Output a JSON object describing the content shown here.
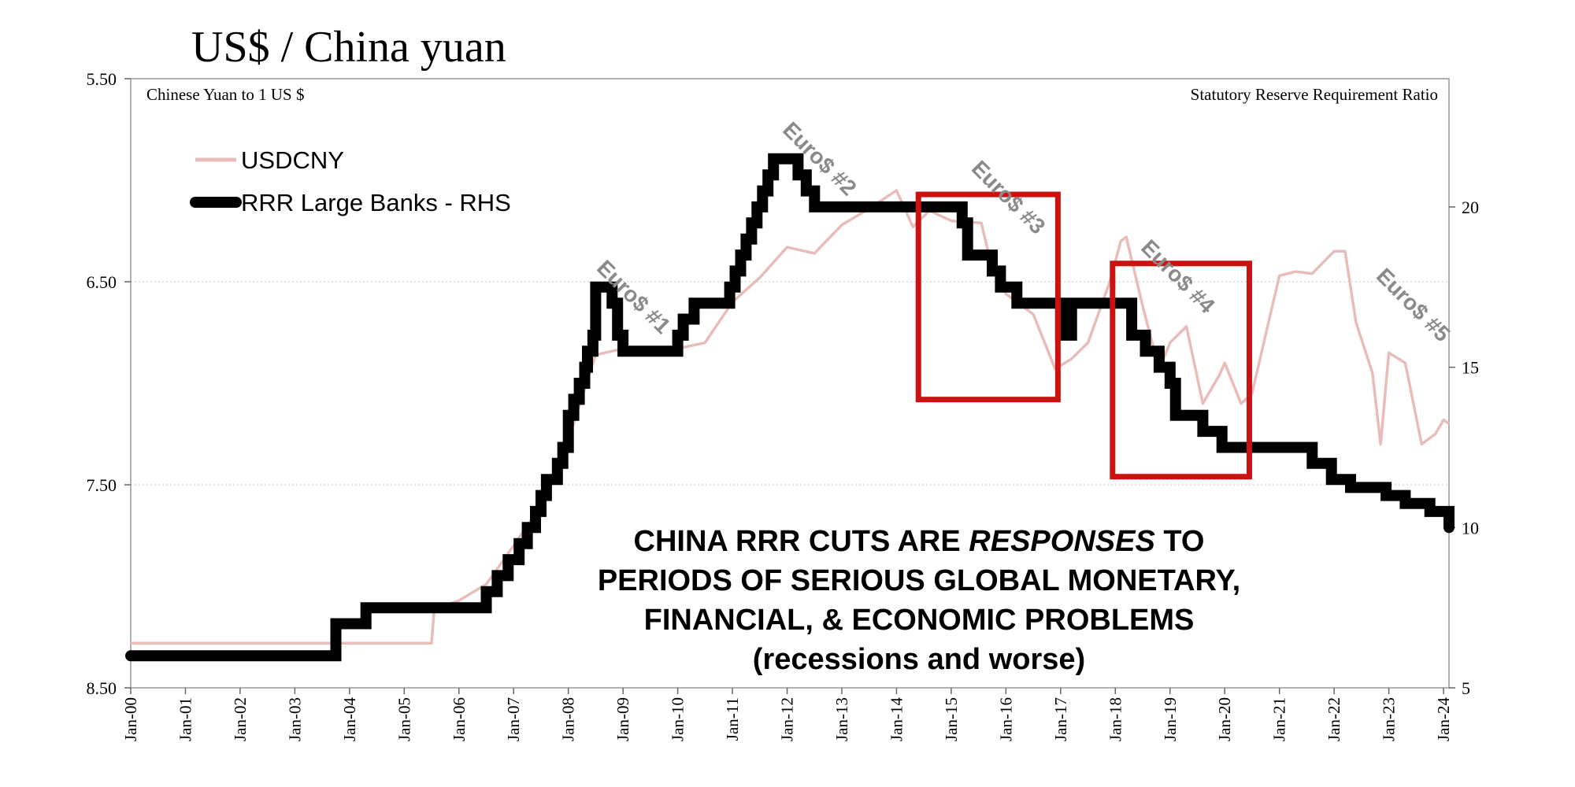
{
  "colors": {
    "usdcny": "#e8bcb8",
    "rrr": "#000000",
    "highlight_box": "#cc1111",
    "event_label": "#8a8a8a",
    "frame": "#999999",
    "grid": "#c8c8c8"
  },
  "chart_data": {
    "type": "line",
    "title": "US$ / China yuan",
    "left_axis_title": "Chinese Yuan to 1 US $",
    "right_axis_title": "Statutory Reserve Requirement Ratio",
    "left_axis": {
      "ylim": [
        5.5,
        8.5
      ],
      "inverted": true,
      "ticks": [
        "5.50",
        "6.50",
        "7.50",
        "8.50"
      ]
    },
    "right_axis": {
      "ylim": [
        5,
        24
      ],
      "ticks": [
        "5",
        "10",
        "15",
        "20"
      ]
    },
    "x_axis": {
      "range": [
        2000.0,
        2024.1
      ],
      "ticks": [
        "Jan-00",
        "Jan-01",
        "Jan-02",
        "Jan-03",
        "Jan-04",
        "Jan-05",
        "Jan-06",
        "Jan-07",
        "Jan-08",
        "Jan-09",
        "Jan-10",
        "Jan-11",
        "Jan-12",
        "Jan-13",
        "Jan-14",
        "Jan-15",
        "Jan-16",
        "Jan-17",
        "Jan-18",
        "Jan-19",
        "Jan-20",
        "Jan-21",
        "Jan-22",
        "Jan-23",
        "Jan-24"
      ]
    },
    "grid": "horizontal gridlines at left-axis ticks",
    "legend": {
      "placement": "top-left",
      "entries": [
        {
          "name": "USDCNY",
          "style": "thin light red line"
        },
        {
          "name": "RRR Large Banks - RHS",
          "style": "thick black stepped line"
        }
      ]
    },
    "series": [
      {
        "name": "USDCNY",
        "axis": "left",
        "points": [
          [
            2000.0,
            8.28
          ],
          [
            2005.5,
            8.28
          ],
          [
            2005.55,
            8.11
          ],
          [
            2005.8,
            8.09
          ],
          [
            2006.0,
            8.07
          ],
          [
            2006.5,
            7.99
          ],
          [
            2007.0,
            7.8
          ],
          [
            2007.5,
            7.6
          ],
          [
            2008.0,
            7.28
          ],
          [
            2008.5,
            6.86
          ],
          [
            2009.0,
            6.83
          ],
          [
            2010.0,
            6.83
          ],
          [
            2010.5,
            6.8
          ],
          [
            2011.0,
            6.6
          ],
          [
            2011.5,
            6.48
          ],
          [
            2012.0,
            6.33
          ],
          [
            2012.5,
            6.36
          ],
          [
            2013.0,
            6.22
          ],
          [
            2013.5,
            6.14
          ],
          [
            2014.0,
            6.05
          ],
          [
            2014.3,
            6.23
          ],
          [
            2014.6,
            6.15
          ],
          [
            2015.0,
            6.2
          ],
          [
            2015.55,
            6.21
          ],
          [
            2015.7,
            6.38
          ],
          [
            2016.0,
            6.56
          ],
          [
            2016.5,
            6.66
          ],
          [
            2016.9,
            6.93
          ],
          [
            2017.2,
            6.88
          ],
          [
            2017.5,
            6.8
          ],
          [
            2017.9,
            6.5
          ],
          [
            2018.1,
            6.3
          ],
          [
            2018.2,
            6.28
          ],
          [
            2018.5,
            6.62
          ],
          [
            2018.8,
            6.93
          ],
          [
            2019.0,
            6.8
          ],
          [
            2019.3,
            6.72
          ],
          [
            2019.6,
            7.1
          ],
          [
            2019.9,
            6.96
          ],
          [
            2020.0,
            6.9
          ],
          [
            2020.3,
            7.1
          ],
          [
            2020.5,
            7.05
          ],
          [
            2020.8,
            6.7
          ],
          [
            2021.0,
            6.47
          ],
          [
            2021.3,
            6.45
          ],
          [
            2021.6,
            6.46
          ],
          [
            2022.0,
            6.35
          ],
          [
            2022.2,
            6.35
          ],
          [
            2022.4,
            6.7
          ],
          [
            2022.7,
            6.95
          ],
          [
            2022.85,
            7.3
          ],
          [
            2023.0,
            6.85
          ],
          [
            2023.3,
            6.9
          ],
          [
            2023.6,
            7.3
          ],
          [
            2023.85,
            7.25
          ],
          [
            2024.0,
            7.18
          ],
          [
            2024.1,
            7.2
          ]
        ]
      },
      {
        "name": "RRR Large Banks - RHS",
        "axis": "right",
        "steps": [
          [
            2000.0,
            6.0
          ],
          [
            2003.75,
            7.0
          ],
          [
            2004.3,
            7.5
          ],
          [
            2006.5,
            8.0
          ],
          [
            2006.7,
            8.5
          ],
          [
            2006.9,
            9.0
          ],
          [
            2007.1,
            9.5
          ],
          [
            2007.25,
            10.0
          ],
          [
            2007.4,
            10.5
          ],
          [
            2007.5,
            11.0
          ],
          [
            2007.6,
            11.5
          ],
          [
            2007.8,
            12.0
          ],
          [
            2007.9,
            12.5
          ],
          [
            2008.0,
            13.5
          ],
          [
            2008.1,
            14.0
          ],
          [
            2008.2,
            14.5
          ],
          [
            2008.3,
            15.0
          ],
          [
            2008.35,
            15.5
          ],
          [
            2008.45,
            16.0
          ],
          [
            2008.5,
            17.5
          ],
          [
            2008.8,
            17.0
          ],
          [
            2008.9,
            16.0
          ],
          [
            2009.0,
            15.5
          ],
          [
            2010.0,
            16.0
          ],
          [
            2010.1,
            16.5
          ],
          [
            2010.3,
            17.0
          ],
          [
            2010.95,
            17.5
          ],
          [
            2011.05,
            18.0
          ],
          [
            2011.15,
            18.5
          ],
          [
            2011.25,
            19.0
          ],
          [
            2011.35,
            19.5
          ],
          [
            2011.45,
            20.0
          ],
          [
            2011.55,
            20.5
          ],
          [
            2011.65,
            21.0
          ],
          [
            2011.75,
            21.5
          ],
          [
            2012.2,
            21.0
          ],
          [
            2012.35,
            20.5
          ],
          [
            2012.5,
            20.0
          ],
          [
            2015.2,
            19.5
          ],
          [
            2015.3,
            18.5
          ],
          [
            2015.75,
            18.0
          ],
          [
            2015.9,
            17.5
          ],
          [
            2016.2,
            17.0
          ],
          [
            2017.0,
            16.0
          ],
          [
            2017.2,
            17.0
          ],
          [
            2018.3,
            16.0
          ],
          [
            2018.55,
            15.5
          ],
          [
            2018.8,
            15.0
          ],
          [
            2019.0,
            14.5
          ],
          [
            2019.1,
            13.5
          ],
          [
            2019.6,
            13.0
          ],
          [
            2019.95,
            12.5
          ],
          [
            2021.6,
            12.0
          ],
          [
            2021.95,
            11.5
          ],
          [
            2022.3,
            11.25
          ],
          [
            2022.95,
            11.0
          ],
          [
            2023.3,
            10.75
          ],
          [
            2023.75,
            10.5
          ],
          [
            2024.1,
            10.0
          ]
        ]
      }
    ],
    "highlight_boxes": [
      {
        "x_from": 2014.4,
        "x_to": 2016.95,
        "left_from": 6.07,
        "left_to": 7.08
      },
      {
        "x_from": 2017.95,
        "x_to": 2020.45,
        "left_from": 6.41,
        "left_to": 7.46
      }
    ],
    "annotations": [
      {
        "text": "Euro$ #1",
        "x": 2009.1,
        "left_y": 6.6
      },
      {
        "text": "Euro$ #2",
        "x": 2012.5,
        "left_y": 5.92
      },
      {
        "text": "Euro$ #3",
        "x": 2015.95,
        "left_y": 6.11
      },
      {
        "text": "Euro$ #4",
        "x": 2019.05,
        "left_y": 6.5
      },
      {
        "text": "Euro$ #5",
        "x": 2023.35,
        "left_y": 6.64
      }
    ],
    "callout_lines": [
      {
        "text": "CHINA RRR CUTS ARE ",
        "emphasis": "RESPONSES",
        "tail": " TO"
      },
      {
        "text": "PERIODS OF SERIOUS GLOBAL MONETARY,"
      },
      {
        "text": "FINANCIAL, & ECONOMIC PROBLEMS"
      },
      {
        "text": "(recessions and worse)"
      }
    ]
  }
}
